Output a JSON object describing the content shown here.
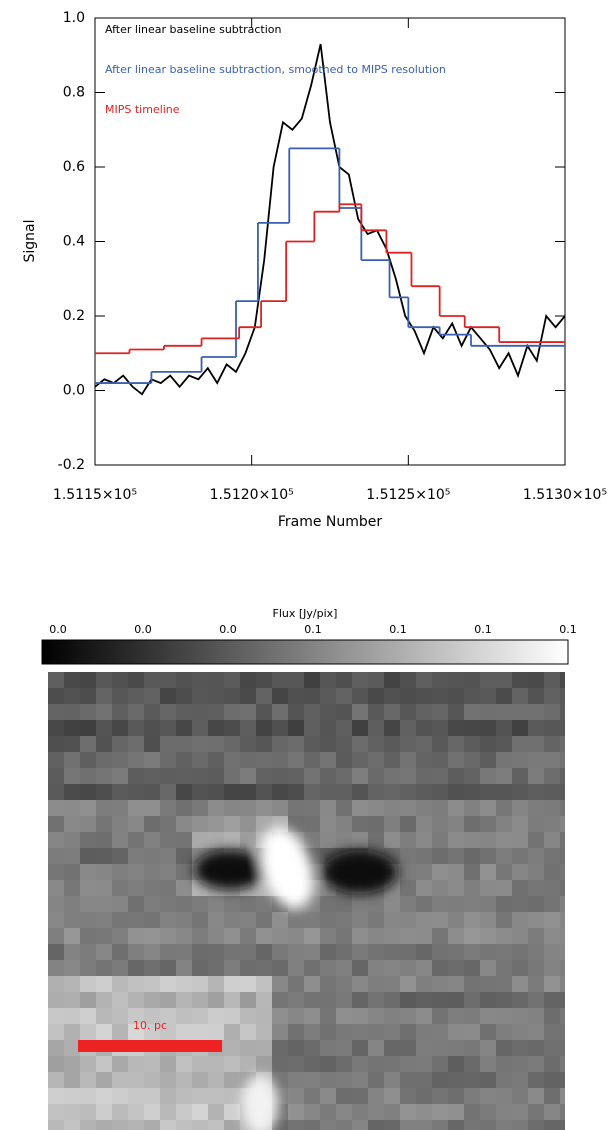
{
  "chart_data": {
    "type": "line",
    "xlabel": "Frame Number",
    "ylabel": "Signal",
    "xlim": [
      151150,
      151300
    ],
    "xticks": [
      {
        "value": 151150,
        "label": "1.5115×10⁵"
      },
      {
        "value": 151200,
        "label": "1.5120×10⁵"
      },
      {
        "value": 151250,
        "label": "1.5125×10⁵"
      },
      {
        "value": 151300,
        "label": "1.5130×10⁵"
      }
    ],
    "ylim": [
      -0.2,
      1.0
    ],
    "yticks": [
      -0.2,
      {
        "value": 0,
        "label": "0.0"
      },
      0.2,
      0.4,
      0.6,
      0.8,
      {
        "value": 1,
        "label": "1.0"
      }
    ],
    "series": [
      {
        "name": "After linear baseline subtraction",
        "color": "#000000",
        "drawstyle": "line",
        "x": [
          151150,
          151153,
          151156,
          151159,
          151162,
          151165,
          151168,
          151171,
          151174,
          151177,
          151180,
          151183,
          151186,
          151189,
          151192,
          151195,
          151198,
          151201,
          151204,
          151207,
          151210,
          151213,
          151216,
          151219,
          151222,
          151225,
          151228,
          151231,
          151234,
          151237,
          151240,
          151243,
          151246,
          151249,
          151252,
          151255,
          151258,
          151261,
          151264,
          151267,
          151270,
          151273,
          151276,
          151279,
          151282,
          151285,
          151288,
          151291,
          151294,
          151297,
          151300
        ],
        "values": [
          0.01,
          0.03,
          0.02,
          0.04,
          0.01,
          -0.01,
          0.03,
          0.02,
          0.04,
          0.01,
          0.04,
          0.03,
          0.06,
          0.02,
          0.07,
          0.05,
          0.1,
          0.17,
          0.35,
          0.6,
          0.72,
          0.7,
          0.73,
          0.82,
          0.93,
          0.72,
          0.6,
          0.58,
          0.46,
          0.42,
          0.43,
          0.38,
          0.3,
          0.2,
          0.16,
          0.1,
          0.17,
          0.14,
          0.18,
          0.12,
          0.17,
          0.14,
          0.11,
          0.06,
          0.1,
          0.04,
          0.12,
          0.08,
          0.2,
          0.17,
          0.2
        ]
      },
      {
        "name": "After linear baseline subtraction, smoothed to MIPS resolution",
        "color": "#3a5fb0",
        "drawstyle": "steps",
        "x": [
          151150,
          151168,
          151184,
          151195,
          151202,
          151212,
          151228,
          151235,
          151244,
          151250,
          151260,
          151270,
          151300
        ],
        "values": [
          0.02,
          0.05,
          0.09,
          0.24,
          0.45,
          0.65,
          0.49,
          0.35,
          0.25,
          0.17,
          0.15,
          0.12,
          0.12
        ]
      },
      {
        "name": "MIPS timeline",
        "color": "#dd2222",
        "drawstyle": "steps",
        "x": [
          151150,
          151161,
          151172,
          151184,
          151196,
          151203,
          151211,
          151220,
          151228,
          151235,
          151243,
          151251,
          151260,
          151268,
          151279,
          151300
        ],
        "values": [
          0.1,
          0.11,
          0.12,
          0.14,
          0.17,
          0.24,
          0.4,
          0.48,
          0.5,
          0.43,
          0.37,
          0.28,
          0.2,
          0.17,
          0.13,
          0.13
        ]
      }
    ]
  },
  "image": {
    "colorbar_label": "Flux [Jy/pix]",
    "colorbar_tick_labels": [
      "0.0",
      "0.0",
      "0.0",
      "0.1",
      "0.1",
      "0.1",
      "0.1"
    ],
    "scale_bar_label": "10. pc"
  }
}
